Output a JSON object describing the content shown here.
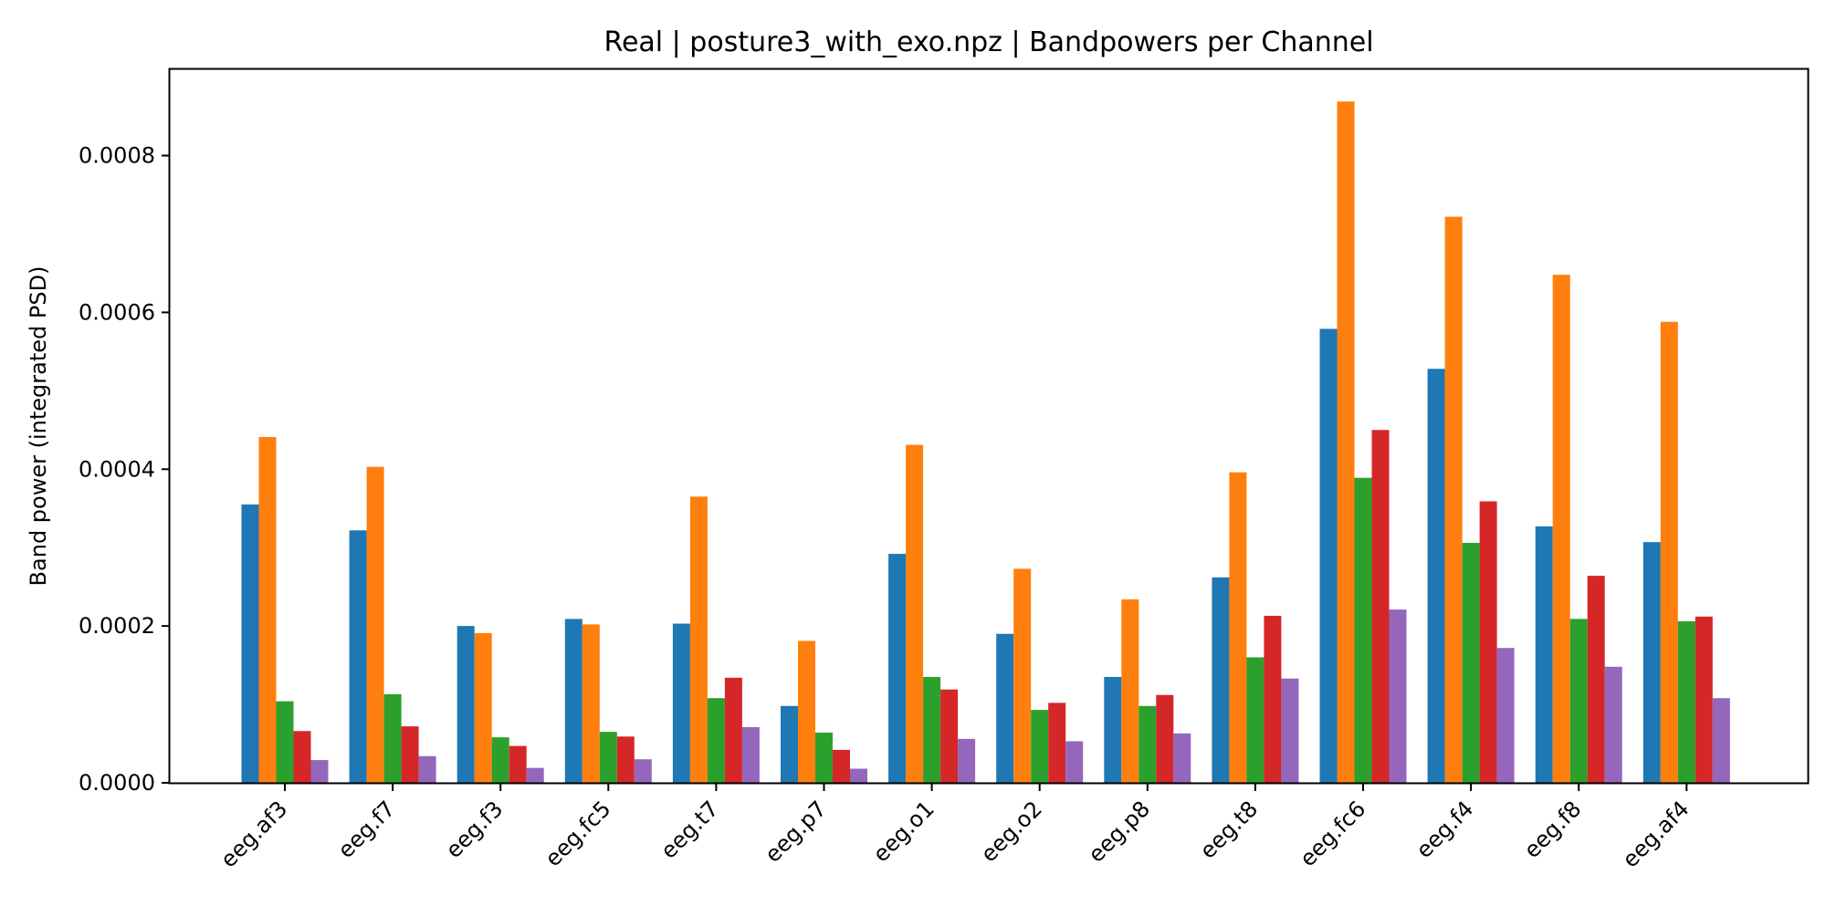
{
  "chart_data": {
    "type": "bar",
    "title": "Real | posture3_with_exo.npz | Bandpowers per Channel",
    "xlabel": "",
    "ylabel": "Band power (integrated PSD)",
    "ylim": [
      0,
      0.00091
    ],
    "yticks": [
      "0.0000",
      "0.0002",
      "0.0004",
      "0.0006",
      "0.0008"
    ],
    "ytick_values": [
      0,
      0.0002,
      0.0004,
      0.0006,
      0.0008
    ],
    "grid": false,
    "legend": null,
    "categories": [
      "eeg.af3",
      "eeg.f7",
      "eeg.f3",
      "eeg.fc5",
      "eeg.t7",
      "eeg.p7",
      "eeg.o1",
      "eeg.o2",
      "eeg.p8",
      "eeg.t8",
      "eeg.fc6",
      "eeg.f4",
      "eeg.f8",
      "eeg.af4"
    ],
    "series": [
      {
        "color": "#1f77b4",
        "values": [
          0.000355,
          0.000322,
          0.0002,
          0.000209,
          0.000203,
          9.8e-05,
          0.000292,
          0.00019,
          0.000135,
          0.000262,
          0.000579,
          0.000528,
          0.000327,
          0.000307
        ]
      },
      {
        "color": "#ff7f0e",
        "values": [
          0.000441,
          0.000403,
          0.000191,
          0.000202,
          0.000365,
          0.000181,
          0.000431,
          0.000273,
          0.000234,
          0.000396,
          0.000869,
          0.000722,
          0.000648,
          0.000588
        ]
      },
      {
        "color": "#2ca02c",
        "values": [
          0.000104,
          0.000113,
          5.8e-05,
          6.5e-05,
          0.000108,
          6.4e-05,
          0.000135,
          9.3e-05,
          9.8e-05,
          0.00016,
          0.000389,
          0.000306,
          0.000209,
          0.000206
        ]
      },
      {
        "color": "#d62728",
        "values": [
          6.6e-05,
          7.2e-05,
          4.7e-05,
          5.9e-05,
          0.000134,
          4.2e-05,
          0.000119,
          0.000102,
          0.000112,
          0.000213,
          0.00045,
          0.000359,
          0.000264,
          0.000212
        ]
      },
      {
        "color": "#9467bd",
        "values": [
          2.9e-05,
          3.4e-05,
          1.9e-05,
          3e-05,
          7.1e-05,
          1.8e-05,
          5.6e-05,
          5.3e-05,
          6.3e-05,
          0.000133,
          0.000221,
          0.000172,
          0.000148,
          0.000108
        ]
      }
    ]
  }
}
